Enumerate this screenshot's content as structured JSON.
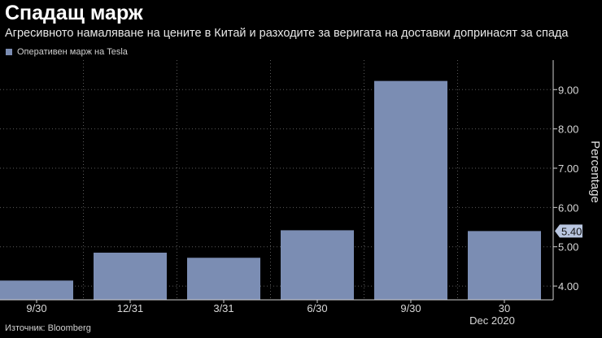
{
  "header": {
    "title": "Спадащ марж",
    "subtitle": "Агресивното намаляване на цените в Китай и разходите за веригата на доставки допринасят за спада"
  },
  "legend": {
    "label": "Оперативен марж на Tesla"
  },
  "footer": {
    "source": "Източник: Bloomberg"
  },
  "colors": {
    "background": "#000000",
    "bar": "#7b8db3",
    "grid": "#5a5a5a",
    "axis": "#d0d0d0"
  },
  "chart_data": {
    "type": "bar",
    "categories": [
      "9/30",
      "12/31",
      "3/31",
      "6/30",
      "9/30",
      "30"
    ],
    "x_sublabels": [
      "",
      "",
      "",
      "",
      "",
      "Dec 2020"
    ],
    "series": [
      {
        "name": "Оперативен марж на Tesla",
        "values": [
          4.14,
          4.85,
          4.72,
          5.42,
          9.22,
          5.4
        ]
      }
    ],
    "ylabel": "Percentage",
    "xlabel": "",
    "ylim": [
      3.65,
      9.75
    ],
    "yticks": [
      4.0,
      5.0,
      6.0,
      7.0,
      8.0,
      9.0
    ],
    "ytick_labels": [
      "4.00",
      "5.00",
      "6.00",
      "7.00",
      "8.00",
      "9.00"
    ],
    "y_axis_position": "right",
    "grid": true,
    "grid_style": "dotted",
    "last_value_callout": "5.40",
    "legend_position": "top-left"
  }
}
